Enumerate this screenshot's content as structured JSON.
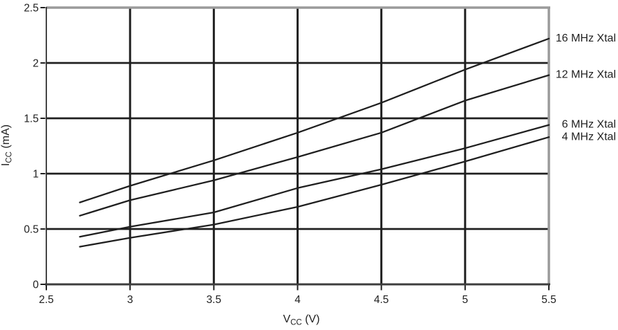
{
  "figure": {
    "background": "#ffffff"
  },
  "chart_data": {
    "type": "line",
    "title": "",
    "xlabel_plain": "Vcc (V)",
    "ylabel_plain": "Icc (mA)",
    "xlabel_segments": [
      {
        "t": "V"
      },
      {
        "t": "CC",
        "sub": true
      },
      {
        "t": " (V)"
      }
    ],
    "ylabel_segments": [
      {
        "t": "I"
      },
      {
        "t": "CC",
        "sub": true
      },
      {
        "t": " (mA)"
      }
    ],
    "xlim": [
      2.5,
      5.5
    ],
    "ylim": [
      0,
      2.5
    ],
    "x_ticks": [
      2.5,
      3,
      3.5,
      4,
      4.5,
      5,
      5.5
    ],
    "x_tick_labels": [
      "2.5",
      "3",
      "3.5",
      "4",
      "4.5",
      "5",
      "5.5"
    ],
    "y_ticks": [
      0,
      0.5,
      1,
      1.5,
      2,
      2.5
    ],
    "y_tick_labels": [
      "0",
      "0.5",
      "1",
      "1.5",
      "2",
      "2.5"
    ],
    "grid": true,
    "legend_position": "right-edge-annotations",
    "x": [
      2.7,
      3.0,
      3.5,
      4.0,
      4.5,
      5.0,
      5.5
    ],
    "series": [
      {
        "name": "16 MHz Xtal",
        "values": [
          0.74,
          0.89,
          1.12,
          1.37,
          1.64,
          1.94,
          2.22
        ]
      },
      {
        "name": "12 MHz Xtal",
        "values": [
          0.62,
          0.76,
          0.94,
          1.15,
          1.37,
          1.66,
          1.89
        ]
      },
      {
        "name": "6 MHz Xtal",
        "values": [
          0.43,
          0.52,
          0.65,
          0.87,
          1.04,
          1.23,
          1.44
        ]
      },
      {
        "name": "4 MHz Xtal",
        "values": [
          0.34,
          0.42,
          0.54,
          0.7,
          0.9,
          1.11,
          1.33
        ]
      }
    ],
    "colors": {
      "line": "#1f1f1f",
      "grid": "#1f1f1f",
      "border": "#9a9a9a",
      "axis_left": "#303030",
      "axis_bottom": "#3d3d3d",
      "tick": "#1f1f1f",
      "text": "#1f1f1f"
    }
  }
}
